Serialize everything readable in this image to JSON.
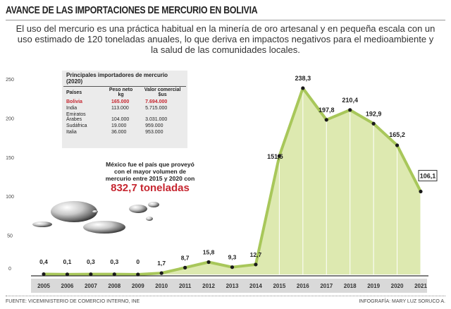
{
  "title": "AVANCE DE LAS IMPORTACIONES DE MERCURIO EN BOLIVIA",
  "subtitle": "El uso del mercurio es una práctica habitual en la minería de oro artesanal y en pequeña escala con un uso estimado de 120 toneladas anuales, lo que deriva en impactos negativos para el medioambiente y la salud de las comunidades locales.",
  "table": {
    "title": "Principales importadores de mercurio (2020)",
    "headers": [
      "Países",
      "Peso neto kg",
      "Valor comercial $us"
    ],
    "rows": [
      [
        "Bolivia",
        "165.000",
        "7.694.000"
      ],
      [
        "India",
        "113.000",
        "5.715.000"
      ],
      [
        "Emiratos Árabes",
        "104.000",
        "3.031.000"
      ],
      [
        "Sudáfrica",
        "19.000",
        "959.000"
      ],
      [
        "Italia",
        "36.000",
        "953.000"
      ]
    ],
    "highlight_color": "#c62630"
  },
  "note": {
    "text": "México fue el país que proveyó con el mayor volumen de mercurio entre 2015 y 2020 con",
    "highlight": "832,7 toneladas"
  },
  "source": "FUENTE: VICEMINISTERIO DE COMERCIO INTERNO, INE",
  "credit": "INFOGRAFÍA: MARY LUZ SORUCO A.",
  "chart_data": {
    "type": "area",
    "x": [
      2005,
      2006,
      2007,
      2008,
      2009,
      2010,
      2011,
      2012,
      2013,
      2014,
      2015,
      2016,
      2017,
      2018,
      2019,
      2020,
      2021
    ],
    "values": [
      0.4,
      0.1,
      0.3,
      0.3,
      0,
      1.7,
      8.7,
      15.8,
      9.3,
      12.7,
      151.5,
      238.3,
      197.8,
      210.4,
      192.9,
      165.2,
      106.1
    ],
    "labels": [
      "0,4",
      "0,1",
      "0,3",
      "0,3",
      "0",
      "1,7",
      "8,7",
      "15,8",
      "9,3",
      "12,7",
      "151,5",
      "238,3",
      "197,8",
      "210,4",
      "192,9",
      "165,2",
      "106,1"
    ],
    "yticks": [
      0,
      50,
      100,
      150,
      200,
      250
    ],
    "ylim": [
      0,
      250
    ],
    "grid": false,
    "colors": {
      "fill": "#dde9b0",
      "line": "#a8c75a",
      "point": "#1a1a1a",
      "axis_band": "#d9d9d9"
    }
  }
}
